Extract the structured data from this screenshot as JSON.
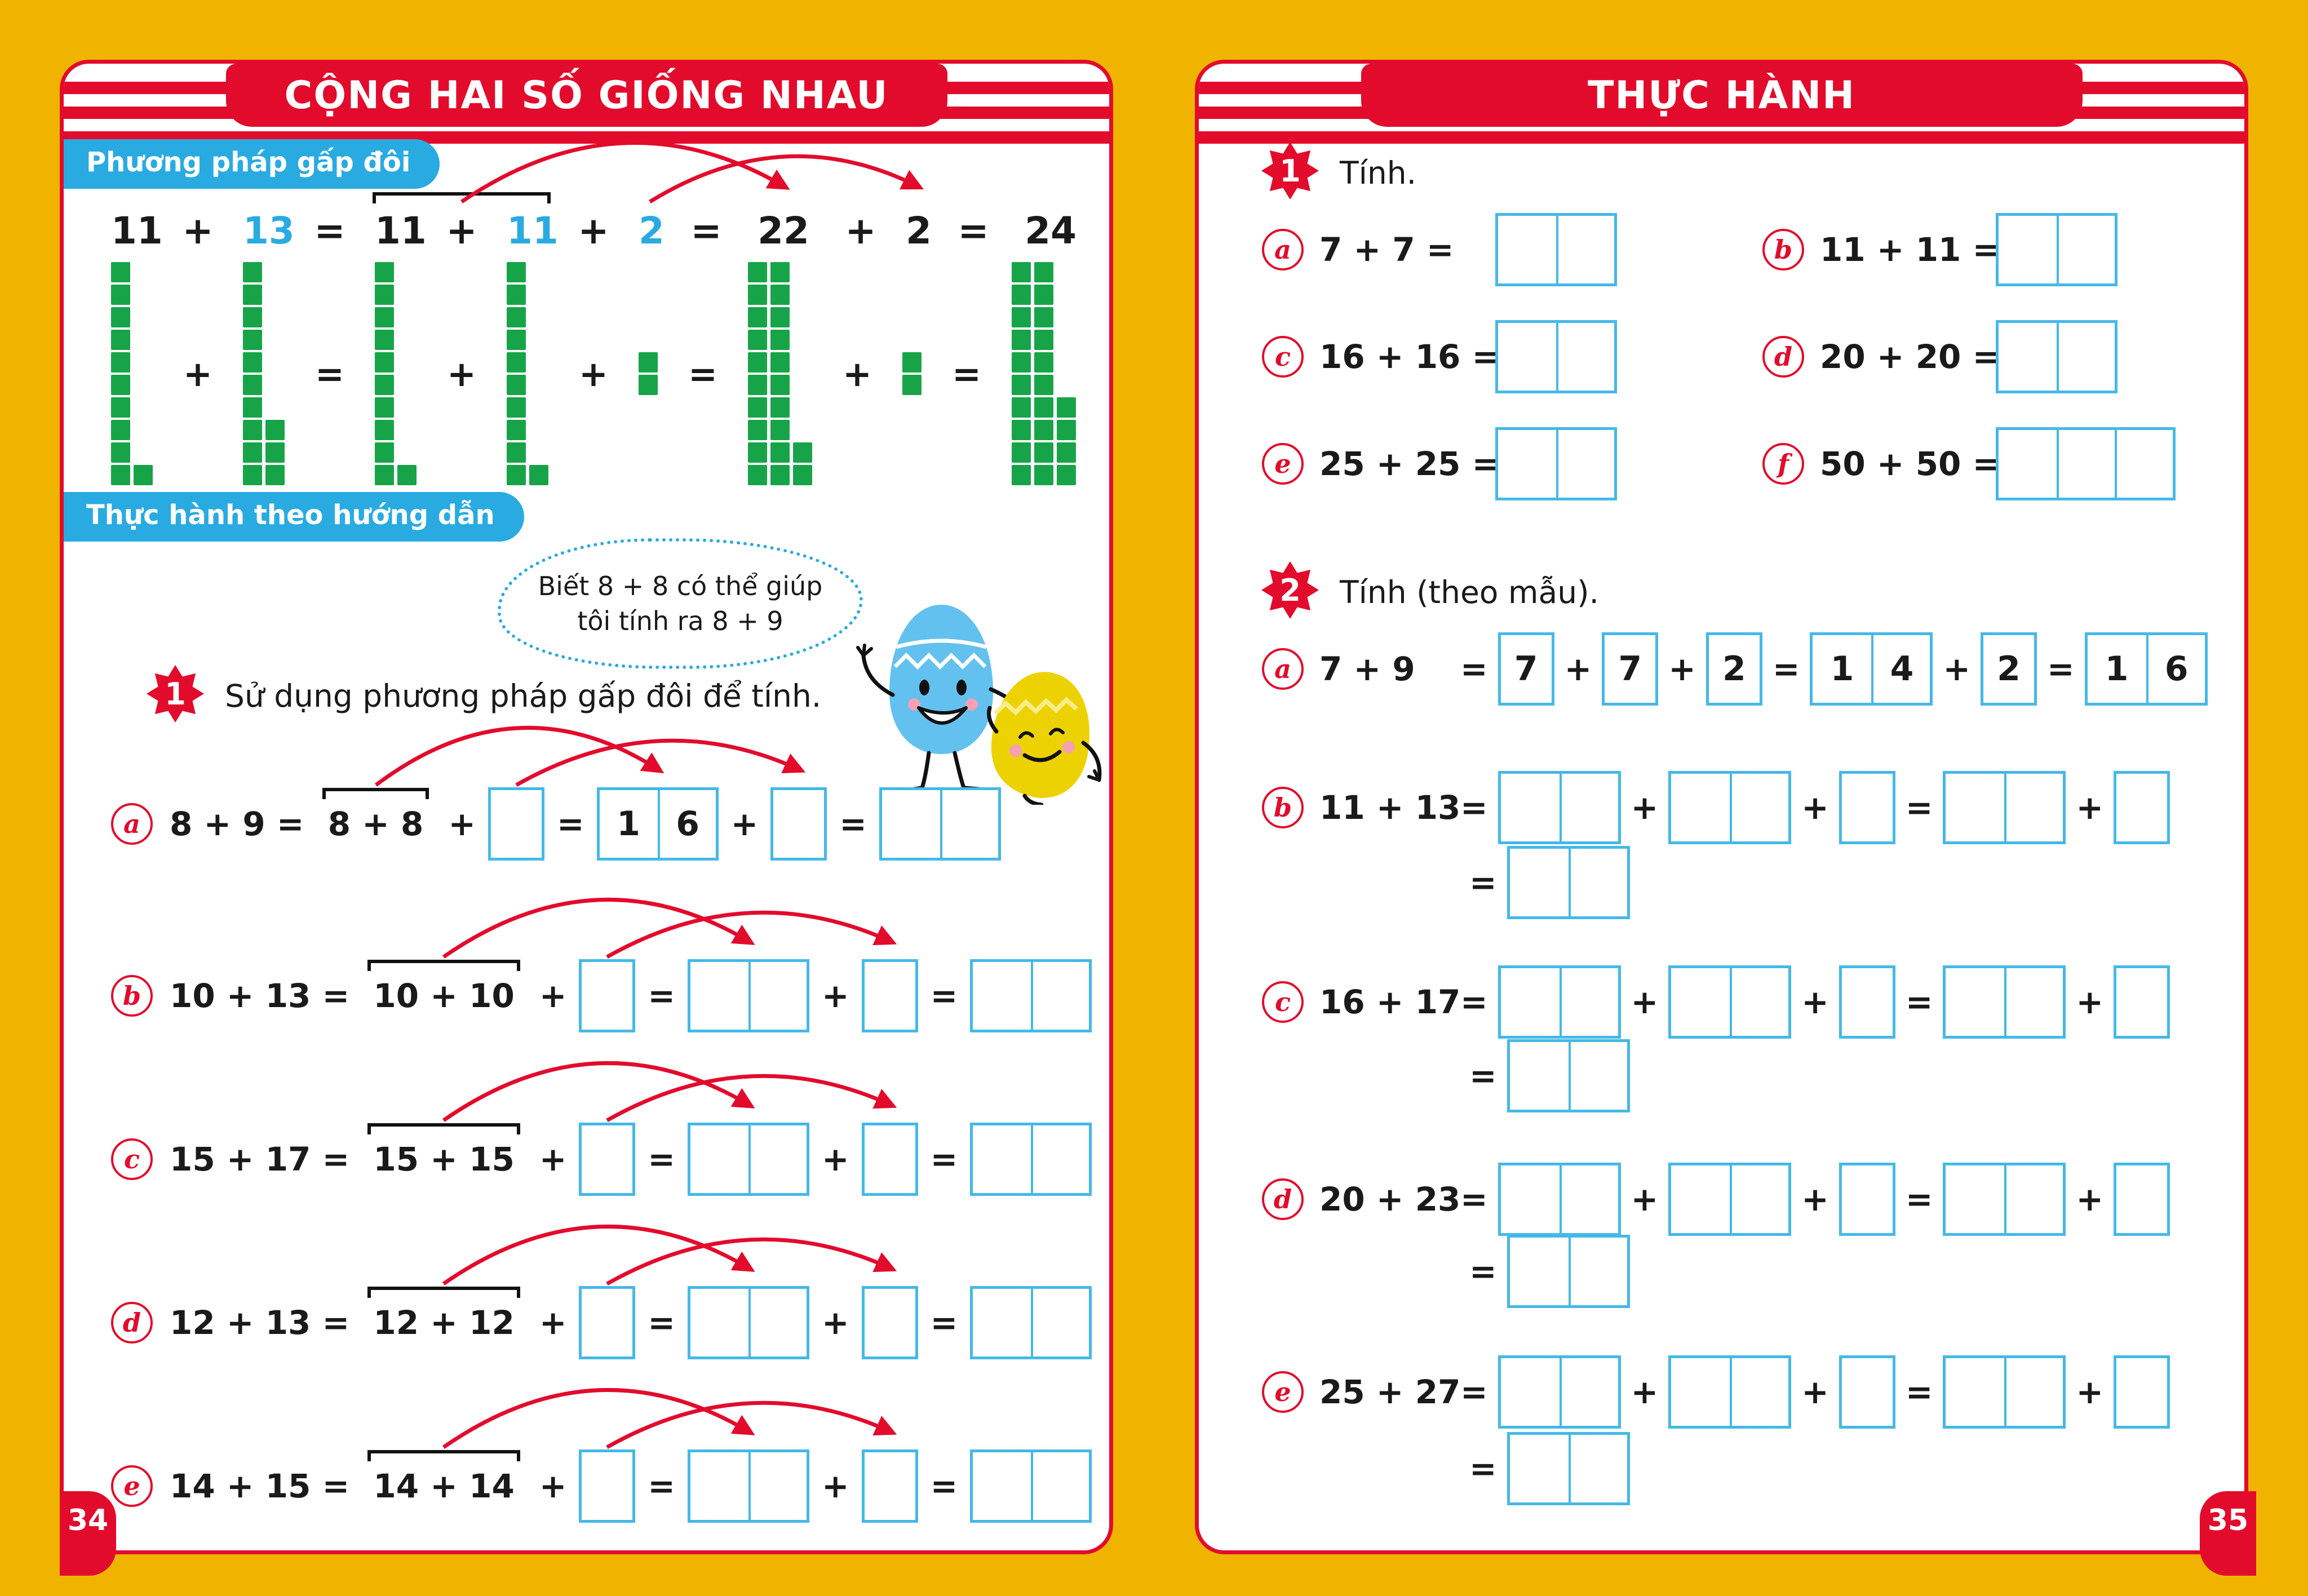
{
  "colors": {
    "bg": "#F0B400",
    "red": "#E30B2C",
    "blue": "#29ABE2",
    "box_border": "#45B8E8",
    "green": "#17A449",
    "egg_blue": "#63C1EF",
    "egg_yellow": "#EDD203"
  },
  "ops": {
    "plus": "+",
    "equals": "="
  },
  "left_page": {
    "title": "CỘNG HAI SỐ GIỐNG NHAU",
    "method_badge": "Phương pháp gấp đôi",
    "practice_badge": "Thực hành theo hướng dẫn",
    "equation_tokens": [
      "11",
      "+",
      "13",
      "=",
      "11",
      "+",
      "11",
      "+",
      "2",
      "=",
      "22",
      "+",
      "2",
      "=",
      "24"
    ],
    "equation_blue_indexes": [
      2,
      6,
      8
    ],
    "block_groups": [
      [
        10,
        1
      ],
      "+",
      [
        10,
        3
      ],
      "=",
      [
        10,
        1
      ],
      "+",
      [
        10,
        1
      ],
      "+",
      [
        2
      ],
      "=",
      [
        10,
        10,
        2
      ],
      "+",
      [
        2
      ],
      "=",
      [
        10,
        10,
        4
      ]
    ],
    "bubble": {
      "line1": "Biết 8 + 8 có thể giúp",
      "line2": "tôi tính ra 8 + 9"
    },
    "exercise": {
      "number": "1",
      "instruction": "Sử dụng phương pháp gấp đôi để tính.",
      "rows": [
        {
          "letter": "a",
          "lhs": "8 + 9 = ",
          "doubled": "8 + 8",
          "box1": "",
          "sum_cells": [
            "1",
            "6"
          ],
          "box2": "",
          "result_cells": [
            "",
            ""
          ]
        },
        {
          "letter": "b",
          "lhs": "10 + 13 = ",
          "doubled": "10 + 10",
          "box1": "",
          "sum_cells": [
            "",
            ""
          ],
          "box2": "",
          "result_cells": [
            "",
            ""
          ]
        },
        {
          "letter": "c",
          "lhs": "15 + 17 = ",
          "doubled": "15 + 15",
          "box1": "",
          "sum_cells": [
            "",
            ""
          ],
          "box2": "",
          "result_cells": [
            "",
            ""
          ]
        },
        {
          "letter": "d",
          "lhs": "12 + 13 = ",
          "doubled": "12 + 12",
          "box1": "",
          "sum_cells": [
            "",
            ""
          ],
          "box2": "",
          "result_cells": [
            "",
            ""
          ]
        },
        {
          "letter": "e",
          "lhs": "14 + 15 = ",
          "doubled": "14 + 14",
          "box1": "",
          "sum_cells": [
            "",
            ""
          ],
          "box2": "",
          "result_cells": [
            "",
            ""
          ]
        }
      ]
    },
    "page_number": "34"
  },
  "right_page": {
    "title": "THỰC HÀNH",
    "ex1": {
      "number": "1",
      "instruction": "Tính.",
      "rows": [
        {
          "letter": "a",
          "expr": "7 + 7 =",
          "cells": [
            "",
            ""
          ]
        },
        {
          "letter": "b",
          "expr": "11 + 11 =",
          "cells": [
            "",
            ""
          ]
        },
        {
          "letter": "c",
          "expr": "16 + 16 =",
          "cells": [
            "",
            ""
          ]
        },
        {
          "letter": "d",
          "expr": "20 + 20 =",
          "cells": [
            "",
            ""
          ]
        },
        {
          "letter": "e",
          "expr": "25 + 25 =",
          "cells": [
            "",
            ""
          ]
        },
        {
          "letter": "f",
          "expr": "50 + 50 =",
          "cells": [
            "",
            "",
            ""
          ]
        }
      ]
    },
    "ex2": {
      "number": "2",
      "instruction": "Tính (theo mẫu).",
      "rows": [
        {
          "letter": "a",
          "lhs": "7 + 9",
          "groups": [
            [
              "7"
            ],
            [
              "7"
            ],
            [
              "2"
            ],
            [
              "1",
              "4"
            ],
            [
              "2"
            ],
            [
              "1",
              "6"
            ]
          ],
          "group_ops": [
            "+",
            "+",
            "=",
            "+",
            "="
          ],
          "result": null
        },
        {
          "letter": "b",
          "lhs": "11 + 13",
          "groups": [
            [
              "",
              ""
            ],
            [
              "",
              ""
            ],
            [
              ""
            ],
            [
              "",
              ""
            ],
            [
              ""
            ]
          ],
          "group_ops": [
            "+",
            "+",
            "=",
            "+"
          ],
          "result": [
            "",
            ""
          ]
        },
        {
          "letter": "c",
          "lhs": "16 + 17",
          "groups": [
            [
              "",
              ""
            ],
            [
              "",
              ""
            ],
            [
              ""
            ],
            [
              "",
              ""
            ],
            [
              ""
            ]
          ],
          "group_ops": [
            "+",
            "+",
            "=",
            "+"
          ],
          "result": [
            "",
            ""
          ]
        },
        {
          "letter": "d",
          "lhs": "20 + 23",
          "groups": [
            [
              "",
              ""
            ],
            [
              "",
              ""
            ],
            [
              ""
            ],
            [
              "",
              ""
            ],
            [
              ""
            ]
          ],
          "group_ops": [
            "+",
            "+",
            "=",
            "+"
          ],
          "result": [
            "",
            ""
          ]
        },
        {
          "letter": "e",
          "lhs": "25 + 27",
          "groups": [
            [
              "",
              ""
            ],
            [
              "",
              ""
            ],
            [
              ""
            ],
            [
              "",
              ""
            ],
            [
              ""
            ]
          ],
          "group_ops": [
            "+",
            "+",
            "=",
            "+"
          ],
          "result": [
            "",
            ""
          ]
        }
      ]
    },
    "page_number": "35"
  }
}
